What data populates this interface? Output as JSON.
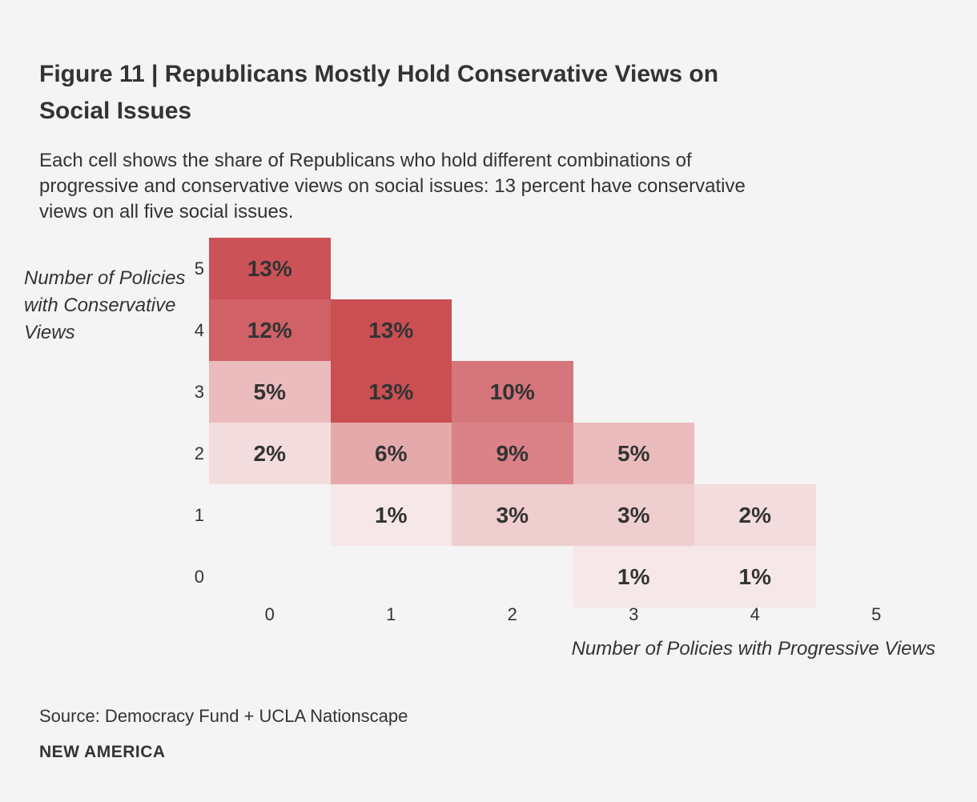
{
  "header": {
    "title": "Figure 11 | Republicans Mostly Hold Conservative Views on Social Issues",
    "title_lines": [
      "Figure 11 | Republicans Mostly Hold Conservative Views on",
      "Social Issues"
    ],
    "subtitle": "Each cell shows the share of Republicans who hold different combinations of progressive and conservative views on social issues: 13 percent have conservative views on all five social issues.",
    "subtitle_lines": [
      "Each cell shows the share of Republicans who hold different combinations of",
      "progressive and conservative views on social issues: 13 percent have conservative",
      "views on all five social issues."
    ]
  },
  "footer": {
    "source": "Source: Democracy Fund + UCLA Nationscape",
    "brand": "NEW AMERICA"
  },
  "colors": {
    "background": "#f4f4f4",
    "text": "#333333",
    "scale_max": "#c94f53",
    "scale_min": "#f6e7e8"
  },
  "chart_data": {
    "type": "heatmap",
    "xlabel": "Number of Policies with Progressive Views",
    "ylabel": "Number of Policies with Conservative Views",
    "ylabel_lines": [
      "Number of Policies",
      "with Conservative",
      "Views"
    ],
    "x_ticks": [
      "0",
      "1",
      "2",
      "3",
      "4",
      "5"
    ],
    "y_ticks": [
      "5",
      "4",
      "3",
      "2",
      "1",
      "0"
    ],
    "x_range": [
      0,
      5
    ],
    "y_range": [
      0,
      5
    ],
    "grid": false,
    "legend": false,
    "cells": [
      {
        "x": 0,
        "y": 5,
        "value": 13,
        "label": "13%",
        "color": "#cb5257"
      },
      {
        "x": 0,
        "y": 4,
        "value": 12,
        "label": "12%",
        "color": "#cf6167"
      },
      {
        "x": 1,
        "y": 4,
        "value": 13,
        "label": "13%",
        "color": "#c94f53"
      },
      {
        "x": 0,
        "y": 3,
        "value": 5,
        "label": "5%",
        "color": "#eabcbe"
      },
      {
        "x": 1,
        "y": 3,
        "value": 13,
        "label": "13%",
        "color": "#c94f53"
      },
      {
        "x": 2,
        "y": 3,
        "value": 10,
        "label": "10%",
        "color": "#d4767b"
      },
      {
        "x": 0,
        "y": 2,
        "value": 2,
        "label": "2%",
        "color": "#f3dcdd"
      },
      {
        "x": 1,
        "y": 2,
        "value": 6,
        "label": "6%",
        "color": "#e5a8ab"
      },
      {
        "x": 2,
        "y": 2,
        "value": 9,
        "label": "9%",
        "color": "#da8287"
      },
      {
        "x": 3,
        "y": 2,
        "value": 5,
        "label": "5%",
        "color": "#eabcbe"
      },
      {
        "x": 1,
        "y": 1,
        "value": 1,
        "label": "1%",
        "color": "#f6e7e8"
      },
      {
        "x": 2,
        "y": 1,
        "value": 3,
        "label": "3%",
        "color": "#efced0"
      },
      {
        "x": 3,
        "y": 1,
        "value": 3,
        "label": "3%",
        "color": "#efced0"
      },
      {
        "x": 4,
        "y": 1,
        "value": 2,
        "label": "2%",
        "color": "#f3dcdd"
      },
      {
        "x": 3,
        "y": 0,
        "value": 1,
        "label": "1%",
        "color": "#f6e7e8"
      },
      {
        "x": 4,
        "y": 0,
        "value": 1,
        "label": "1%",
        "color": "#f6e7e8"
      }
    ]
  }
}
